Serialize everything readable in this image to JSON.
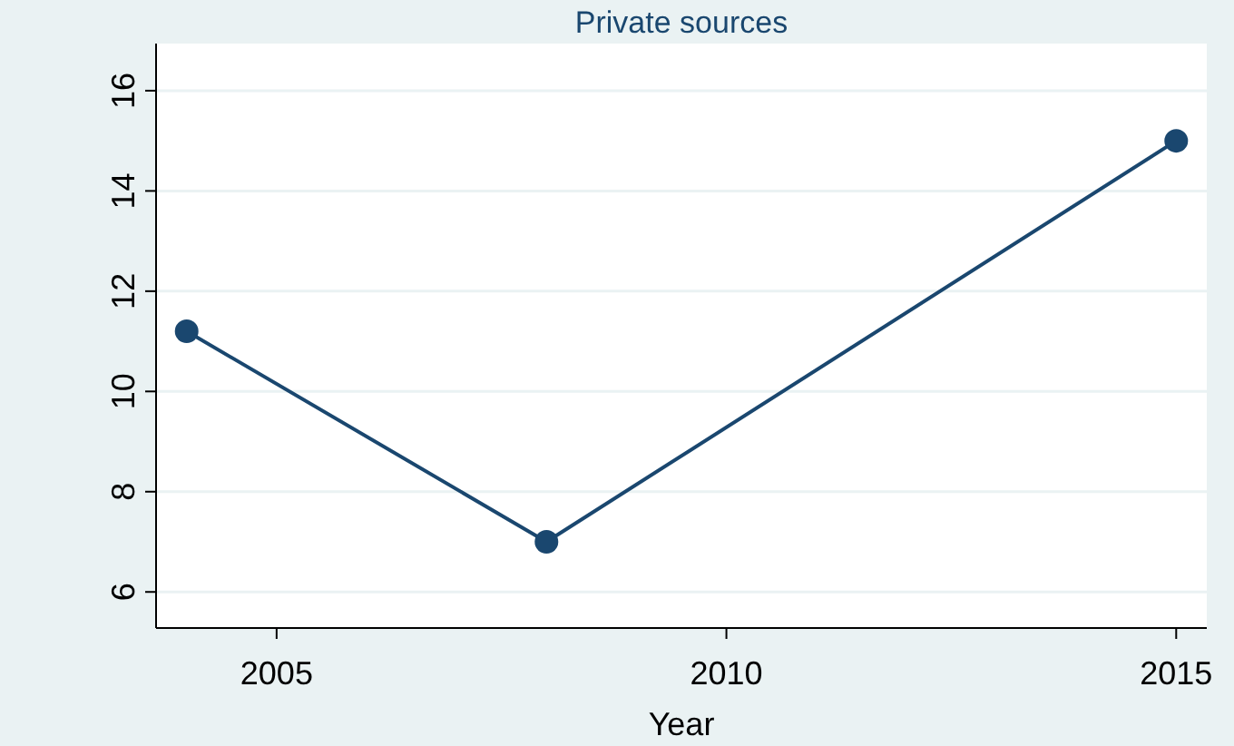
{
  "chart_data": {
    "type": "line",
    "title": "Private sources",
    "xlabel": "Year",
    "x": [
      2004,
      2008,
      2015
    ],
    "series": [
      {
        "color": "#1a476f",
        "values": [
          11.2,
          7,
          15
        ]
      }
    ],
    "xlim": [
      2003.66,
      2015.34
    ],
    "xticks": [
      2005,
      2010,
      2015
    ],
    "ylim": [
      5.28,
      16.94
    ],
    "yticks": [
      6,
      8,
      10,
      12,
      14,
      16
    ],
    "grid": "y",
    "marker": "circle",
    "line_style": "solid"
  }
}
